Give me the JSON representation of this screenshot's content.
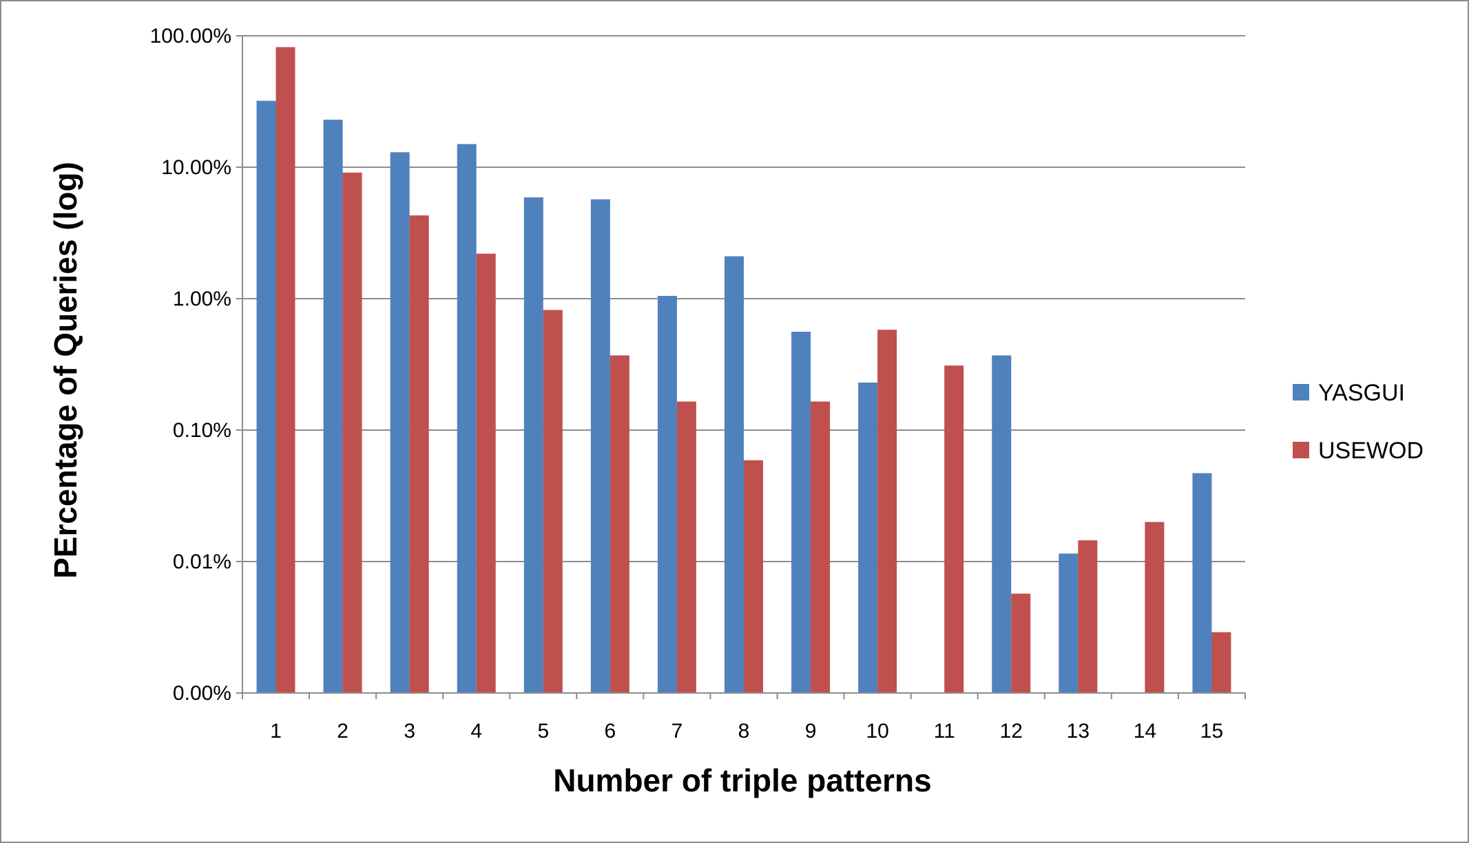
{
  "chart_data": {
    "type": "bar",
    "xlabel": "Number of triple patterns",
    "ylabel": "PErcentage of Queries (log)",
    "y_scale": "log",
    "ylim": [
      0.001,
      100
    ],
    "y_tick_values": [
      0.001,
      0.01,
      0.1,
      1,
      10,
      100
    ],
    "y_tick_labels": [
      "0.00%",
      "0.01%",
      "0.10%",
      "1.00%",
      "10.00%",
      "100.00%"
    ],
    "grid": true,
    "legend_position": "right",
    "categories": [
      "1",
      "2",
      "3",
      "4",
      "5",
      "6",
      "7",
      "8",
      "9",
      "10",
      "11",
      "12",
      "13",
      "14",
      "15"
    ],
    "series": [
      {
        "name": "YASGUI",
        "color": "#4F81BD",
        "values": [
          32,
          23,
          13,
          15,
          5.9,
          5.7,
          1.05,
          2.1,
          0.56,
          0.23,
          null,
          0.37,
          0.0115,
          null,
          0.047
        ]
      },
      {
        "name": "USEWOD",
        "color": "#C0504D",
        "values": [
          82,
          9.1,
          4.3,
          2.2,
          0.82,
          0.37,
          0.165,
          0.059,
          0.165,
          0.58,
          0.31,
          0.0057,
          0.0145,
          0.02,
          0.0029
        ]
      }
    ]
  }
}
